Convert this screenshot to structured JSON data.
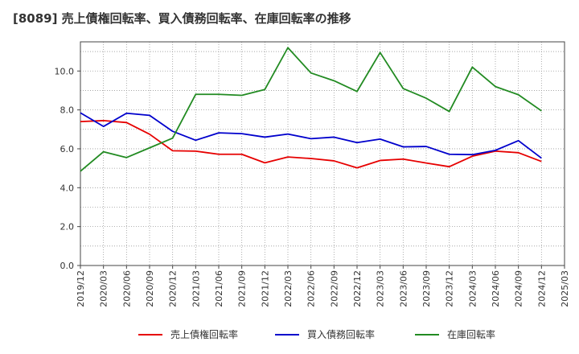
{
  "chart_data": {
    "type": "line",
    "title": "[8089]  売上債権回転率、買入債務回転率、在庫回転率の推移",
    "xlabel": "",
    "ylabel": "",
    "ylim": [
      0,
      11.5
    ],
    "yticks": [
      0,
      2,
      4,
      6,
      8,
      10
    ],
    "ytick_labels": [
      "0.0",
      "2.0",
      "4.0",
      "6.0",
      "8.0",
      "10.0"
    ],
    "grid": true,
    "legend_position": "bottom",
    "x": [
      "2019/12",
      "2020/03",
      "2020/06",
      "2020/09",
      "2020/12",
      "2021/03",
      "2021/06",
      "2021/09",
      "2021/12",
      "2022/03",
      "2022/06",
      "2022/09",
      "2022/12",
      "2023/03",
      "2023/06",
      "2023/09",
      "2023/12",
      "2024/03",
      "2024/06",
      "2024/09",
      "2024/12",
      "2025/03"
    ],
    "series": [
      {
        "name": "売上債権回転率",
        "color": "#e60000",
        "values": [
          7.4,
          7.45,
          7.35,
          6.75,
          5.9,
          5.88,
          5.72,
          5.72,
          5.28,
          5.58,
          5.5,
          5.38,
          5.02,
          5.4,
          5.47,
          5.27,
          5.08,
          5.62,
          5.88,
          5.8,
          5.35,
          null
        ]
      },
      {
        "name": "買入債務回転率",
        "color": "#0000cc",
        "values": [
          7.85,
          7.15,
          7.83,
          7.72,
          6.9,
          6.44,
          6.82,
          6.78,
          6.6,
          6.76,
          6.52,
          6.6,
          6.32,
          6.5,
          6.1,
          6.12,
          5.72,
          5.7,
          5.92,
          6.42,
          5.52,
          null
        ]
      },
      {
        "name": "在庫回転率",
        "color": "#228b22",
        "values": [
          4.85,
          5.85,
          5.55,
          6.05,
          6.55,
          8.8,
          8.8,
          8.75,
          9.05,
          11.2,
          9.9,
          9.5,
          8.95,
          10.95,
          9.1,
          8.6,
          7.92,
          10.2,
          9.2,
          8.78,
          7.95,
          null
        ]
      }
    ]
  }
}
